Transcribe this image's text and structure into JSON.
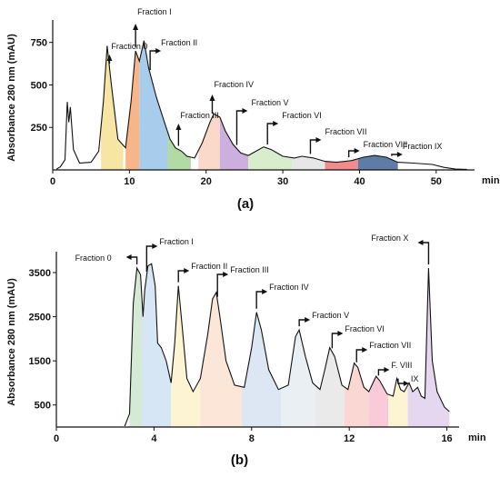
{
  "chart_data": [
    {
      "type": "area",
      "panel_label": "(a)",
      "ylabel": "Absorbance 280 nm (mAU)",
      "xunit": "min",
      "xlim": [
        0,
        55
      ],
      "ylim": [
        0,
        850
      ],
      "xticks": [
        0,
        10,
        20,
        30,
        40,
        50
      ],
      "yticks": [
        250,
        500,
        750
      ],
      "xtick_labels": [
        "0",
        "10",
        "20",
        "30",
        "40",
        "50"
      ],
      "ytick_labels": [
        "250",
        "500",
        "750"
      ],
      "trace": [
        [
          0.5,
          5
        ],
        [
          1.0,
          18
        ],
        [
          1.6,
          60
        ],
        [
          1.9,
          400
        ],
        [
          2.1,
          280
        ],
        [
          2.3,
          370
        ],
        [
          2.7,
          120
        ],
        [
          3.5,
          40
        ],
        [
          5.0,
          45
        ],
        [
          6.0,
          110
        ],
        [
          6.6,
          400
        ],
        [
          7.1,
          730
        ],
        [
          7.6,
          520
        ],
        [
          8.5,
          180
        ],
        [
          9.5,
          130
        ],
        [
          10.2,
          400
        ],
        [
          10.8,
          700
        ],
        [
          11.3,
          640
        ],
        [
          11.9,
          760
        ],
        [
          12.5,
          600
        ],
        [
          13.5,
          430
        ],
        [
          14.5,
          290
        ],
        [
          15.3,
          180
        ],
        [
          16.0,
          130
        ],
        [
          16.8,
          110
        ],
        [
          17.5,
          80
        ],
        [
          18.5,
          70
        ],
        [
          19.5,
          160
        ],
        [
          20.5,
          280
        ],
        [
          21.0,
          330
        ],
        [
          21.8,
          310
        ],
        [
          22.5,
          230
        ],
        [
          23.5,
          150
        ],
        [
          24.5,
          100
        ],
        [
          25.5,
          85
        ],
        [
          26.5,
          110
        ],
        [
          27.5,
          135
        ],
        [
          28.5,
          120
        ],
        [
          30.0,
          80
        ],
        [
          31.5,
          70
        ],
        [
          32.5,
          80
        ],
        [
          34.0,
          70
        ],
        [
          35.5,
          50
        ],
        [
          37.0,
          45
        ],
        [
          39.0,
          55
        ],
        [
          40.5,
          75
        ],
        [
          42.0,
          85
        ],
        [
          43.5,
          75
        ],
        [
          45.0,
          45
        ],
        [
          47.0,
          40
        ],
        [
          49.5,
          32
        ],
        [
          51.0,
          15
        ],
        [
          52.5,
          5
        ],
        [
          54.0,
          3
        ]
      ],
      "fractions": [
        {
          "label": "Fraction 0",
          "x0": 6.3,
          "x1": 9.2,
          "color": "#f6e29a",
          "arrow_x": 7.4
        },
        {
          "label": "Fraction I",
          "x0": 9.5,
          "x1": 11.3,
          "color": "#f7ad7b",
          "arrow_x": 10.8
        },
        {
          "label": "Fraction II",
          "x0": 11.3,
          "x1": 15.0,
          "color": "#9ec8ea",
          "arrow_x": 12.7
        },
        {
          "label": "Fraction III",
          "x0": 15.0,
          "x1": 18.0,
          "color": "#a9d69a",
          "arrow_x": 16.4
        },
        {
          "label": "Fraction IV",
          "x0": 19.0,
          "x1": 21.8,
          "color": "#fad4c4",
          "arrow_x": 20.8
        },
        {
          "label": "Fraction V",
          "x0": 21.8,
          "x1": 25.5,
          "color": "#c7a6dc",
          "arrow_x": 24.0
        },
        {
          "label": "Fraction VI",
          "x0": 25.5,
          "x1": 31.2,
          "color": "#d3ebc7",
          "arrow_x": 28.0
        },
        {
          "label": "Fraction VII",
          "x0": 31.2,
          "x1": 35.5,
          "color": "#e4e4e4",
          "arrow_x": 33.6
        },
        {
          "label": "Fraction VIII",
          "x0": 35.5,
          "x1": 39.8,
          "color": "#f08080",
          "arrow_x": 38.6
        },
        {
          "label": "Fraction IX",
          "x0": 39.8,
          "x1": 45.0,
          "color": "#4e6e9c",
          "arrow_x": 44.2
        }
      ]
    },
    {
      "type": "area",
      "panel_label": "(b)",
      "ylabel": "Absorbance 280 nm (mAU)",
      "xunit": "min",
      "xlim": [
        0,
        16.5
      ],
      "ylim": [
        0,
        3850
      ],
      "xticks": [
        0,
        4,
        8,
        12,
        16
      ],
      "yticks": [
        500,
        1500,
        2500,
        3500
      ],
      "xtick_labels": [
        "0",
        "4",
        "8",
        "12",
        "16"
      ],
      "ytick_labels": [
        "500",
        "1500",
        "2500",
        "3500"
      ],
      "trace": [
        [
          2.8,
          20
        ],
        [
          3.0,
          300
        ],
        [
          3.15,
          2800
        ],
        [
          3.3,
          3600
        ],
        [
          3.45,
          3450
        ],
        [
          3.55,
          2500
        ],
        [
          3.62,
          3100
        ],
        [
          3.75,
          3650
        ],
        [
          3.9,
          3700
        ],
        [
          4.05,
          3200
        ],
        [
          4.15,
          1900
        ],
        [
          4.3,
          1800
        ],
        [
          4.5,
          1500
        ],
        [
          4.7,
          1000
        ],
        [
          4.85,
          1900
        ],
        [
          5.0,
          3200
        ],
        [
          5.15,
          2300
        ],
        [
          5.35,
          1100
        ],
        [
          5.6,
          800
        ],
        [
          5.9,
          1100
        ],
        [
          6.2,
          2100
        ],
        [
          6.4,
          2900
        ],
        [
          6.55,
          3050
        ],
        [
          6.7,
          2500
        ],
        [
          6.95,
          1500
        ],
        [
          7.3,
          950
        ],
        [
          7.7,
          900
        ],
        [
          8.0,
          1800
        ],
        [
          8.2,
          2600
        ],
        [
          8.4,
          2200
        ],
        [
          8.7,
          1300
        ],
        [
          9.1,
          850
        ],
        [
          9.5,
          950
        ],
        [
          9.8,
          2050
        ],
        [
          9.95,
          2200
        ],
        [
          10.2,
          1600
        ],
        [
          10.5,
          1000
        ],
        [
          10.8,
          850
        ],
        [
          11.0,
          1300
        ],
        [
          11.2,
          1800
        ],
        [
          11.4,
          1600
        ],
        [
          11.7,
          950
        ],
        [
          11.95,
          850
        ],
        [
          12.2,
          1450
        ],
        [
          12.35,
          1350
        ],
        [
          12.6,
          900
        ],
        [
          12.8,
          800
        ],
        [
          13.1,
          1150
        ],
        [
          13.25,
          1050
        ],
        [
          13.55,
          750
        ],
        [
          13.8,
          700
        ],
        [
          13.95,
          1100
        ],
        [
          14.1,
          850
        ],
        [
          14.25,
          800
        ],
        [
          14.45,
          1000
        ],
        [
          14.6,
          800
        ],
        [
          14.8,
          900
        ],
        [
          14.95,
          700
        ],
        [
          15.1,
          650
        ],
        [
          15.25,
          3600
        ],
        [
          15.4,
          1500
        ],
        [
          15.6,
          800
        ],
        [
          15.9,
          450
        ],
        [
          16.1,
          350
        ]
      ],
      "fractions": [
        {
          "label": "Fraction 0",
          "x0": 3.0,
          "x1": 3.5,
          "color": "#cfe8cf",
          "arrow_x": 3.3
        },
        {
          "label": "Fraction I",
          "x0": 3.5,
          "x1": 4.7,
          "color": "#d3e3f4",
          "arrow_x": 3.7
        },
        {
          "label": "Fraction II",
          "x0": 4.7,
          "x1": 5.9,
          "color": "#fdf3cf",
          "arrow_x": 5.0
        },
        {
          "label": "Fraction III",
          "x0": 5.9,
          "x1": 7.6,
          "color": "#fbe3d3",
          "arrow_x": 6.6
        },
        {
          "label": "Fraction IV",
          "x0": 7.6,
          "x1": 9.2,
          "color": "#d8e4f2",
          "arrow_x": 8.2
        },
        {
          "label": "Fraction V",
          "x0": 9.2,
          "x1": 10.6,
          "color": "#e8edf2",
          "arrow_x": 9.95
        },
        {
          "label": "Fraction VI",
          "x0": 10.6,
          "x1": 11.8,
          "color": "#e8e8e8",
          "arrow_x": 11.3
        },
        {
          "label": "Fraction VII",
          "x0": 11.8,
          "x1": 12.8,
          "color": "#fbd3cf",
          "arrow_x": 12.3
        },
        {
          "label": "F. VIII",
          "x0": 12.8,
          "x1": 13.6,
          "color": "#f8c4d4",
          "arrow_x": 13.2
        },
        {
          "label": "IX",
          "x0": 13.6,
          "x1": 14.4,
          "color": "#fdf3cf",
          "arrow_x": 14.0
        },
        {
          "label": "Fraction X",
          "x0": 14.4,
          "x1": 16.1,
          "color": "#e3d3ee",
          "arrow_x": 15.25
        }
      ]
    }
  ]
}
